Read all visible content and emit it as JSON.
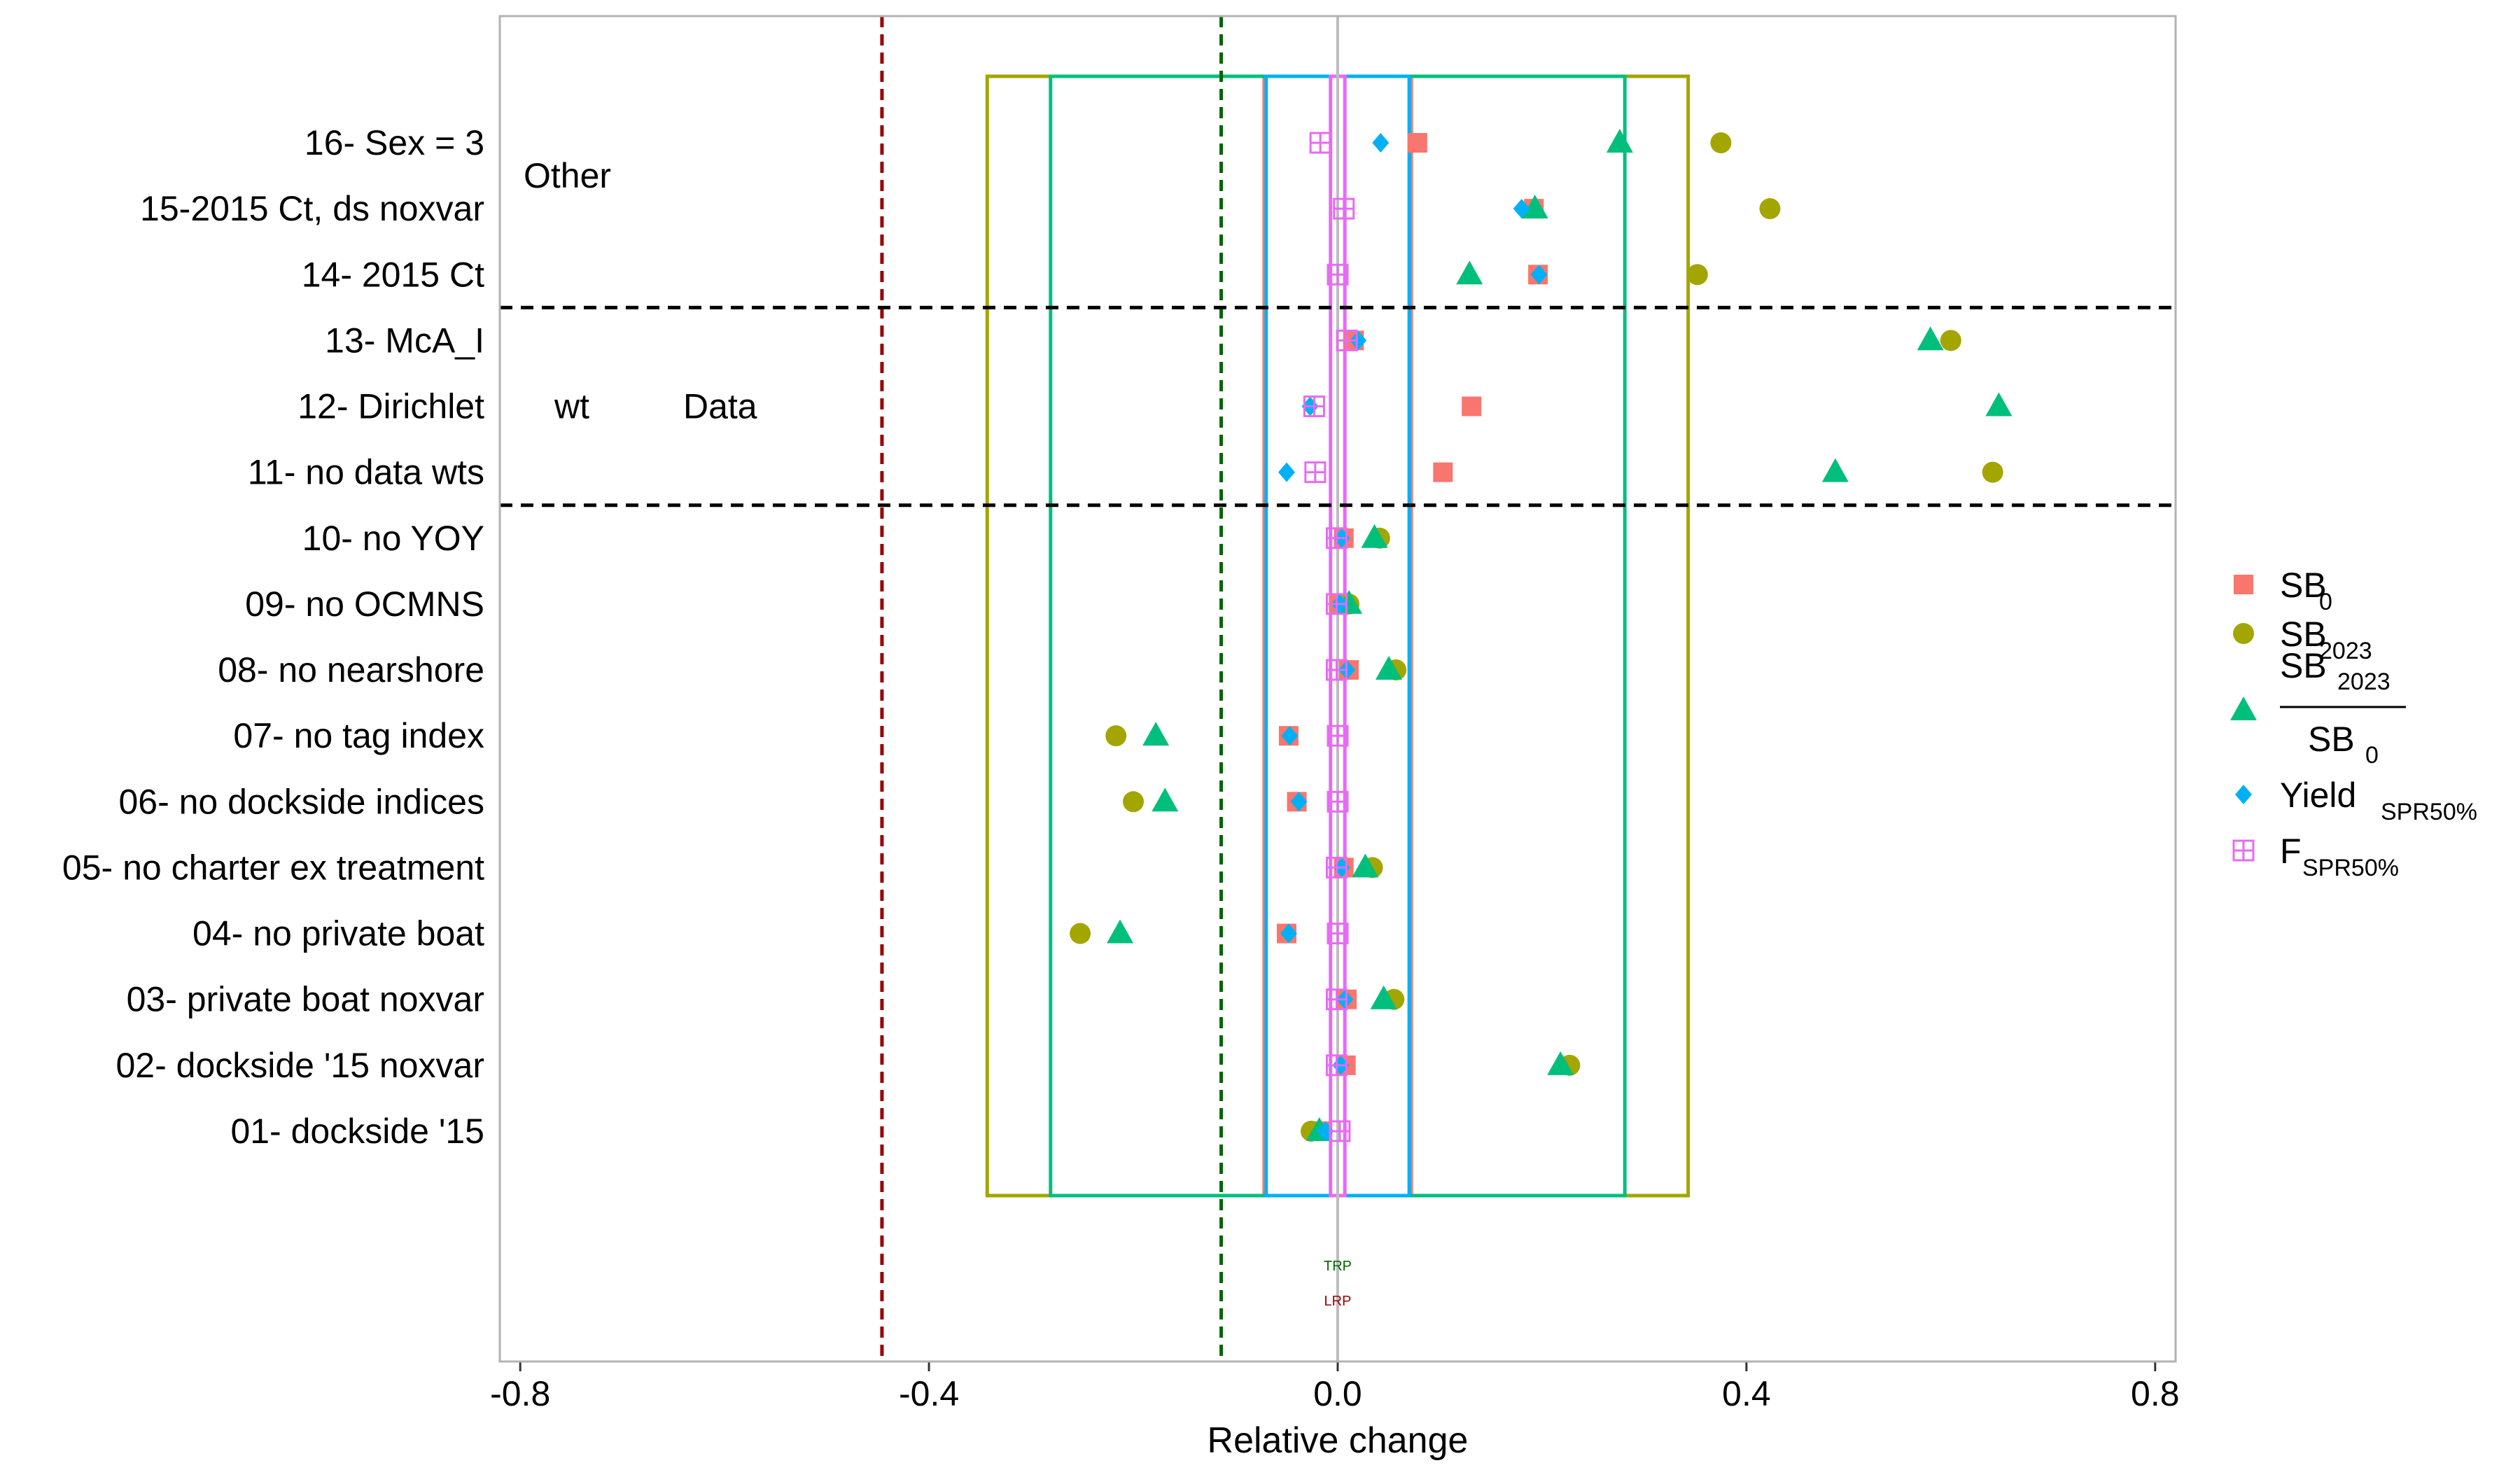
{
  "chart_data": {
    "type": "scatter",
    "xlabel": "Relative change",
    "xlim": [
      -0.82,
      0.82
    ],
    "xticks": [
      -0.8,
      -0.4,
      0.0,
      0.4,
      0.8
    ],
    "xtick_labels": [
      "-0.8",
      "-0.4",
      "0.0",
      "0.4",
      "0.8"
    ],
    "grid": false,
    "legend_position": "right",
    "categories": [
      "16- Sex = 3",
      "15-2015 Ct, ds noxvar",
      "14- 2015 Ct",
      "13- McA_I",
      "12- Dirichlet",
      "11- no data wts",
      "10- no YOY",
      "09- no OCMNS",
      "08- no nearshore",
      "07- no tag index",
      "06- no dockside indices",
      "05- no charter ex treatment",
      "04- no private boat",
      "03- private boat noxvar",
      "02- dockside '15 noxvar",
      "01- dockside '15"
    ],
    "group_labels": [
      {
        "text": "Other",
        "row": 0.5
      },
      {
        "text": "wt",
        "row": 4
      },
      {
        "text": "Data",
        "row": 4
      }
    ],
    "group_dividers_after_rows": [
      2,
      5
    ],
    "reference_lines": [
      {
        "name": "LRP",
        "x": -0.446,
        "color": "#990000"
      },
      {
        "name": "TRP",
        "x": -0.114,
        "color": "#006400"
      }
    ],
    "zero_line": {
      "x": 0.0,
      "color": "#bdbdbd"
    },
    "series": [
      {
        "name": "SB0",
        "label_main": "SB",
        "label_sub": "0",
        "color": "#F8766D",
        "marker": "square",
        "range_box": [
          -0.072,
          0.072
        ],
        "values": [
          0.078,
          0.192,
          0.196,
          0.016,
          0.131,
          0.103,
          0.006,
          0.002,
          0.011,
          -0.048,
          -0.04,
          0.006,
          -0.05,
          0.009,
          0.008,
          -0.017
        ]
      },
      {
        "name": "SB2023",
        "label_main": "SB",
        "label_sub": "2023",
        "color": "#A3A500",
        "marker": "circle",
        "range_box": [
          -0.343,
          0.343
        ],
        "values": [
          0.375,
          0.423,
          0.352,
          0.6,
          null,
          0.641,
          0.041,
          0.011,
          0.057,
          -0.217,
          -0.2,
          0.034,
          -0.252,
          0.055,
          0.227,
          -0.026
        ]
      },
      {
        "name": "SB2023/SB0",
        "label_num_main": "SB",
        "label_num_sub": "2023",
        "label_den_main": "SB",
        "label_den_sub": "0",
        "color": "#00BF7D",
        "marker": "triangle",
        "range_box": [
          -0.281,
          0.281
        ],
        "values": [
          0.276,
          0.193,
          0.129,
          0.58,
          0.647,
          0.487,
          0.036,
          0.011,
          0.05,
          -0.178,
          -0.169,
          0.027,
          -0.213,
          0.045,
          0.218,
          -0.018
        ]
      },
      {
        "name": "YieldSPR50%",
        "label_main": "Yield",
        "label_sub": "SPR50%",
        "color": "#00B0F6",
        "marker": "diamond",
        "range_box": [
          -0.07,
          0.07
        ],
        "values": [
          0.042,
          0.18,
          0.197,
          0.02,
          -0.027,
          -0.05,
          0.004,
          0.002,
          0.009,
          -0.047,
          -0.038,
          0.004,
          -0.048,
          0.007,
          0.003,
          -0.012
        ]
      },
      {
        "name": "FSPR50%",
        "label_main": "F",
        "label_sub": "SPR50%",
        "color": "#E76BF3",
        "marker": "square-plus",
        "range_box": [
          -0.007,
          0.007
        ],
        "values": [
          -0.017,
          0.006,
          0.0,
          0.009,
          -0.023,
          -0.022,
          -0.001,
          -0.001,
          -0.001,
          0.0,
          0.0,
          -0.001,
          0.0,
          -0.001,
          -0.001,
          0.002
        ]
      }
    ]
  }
}
